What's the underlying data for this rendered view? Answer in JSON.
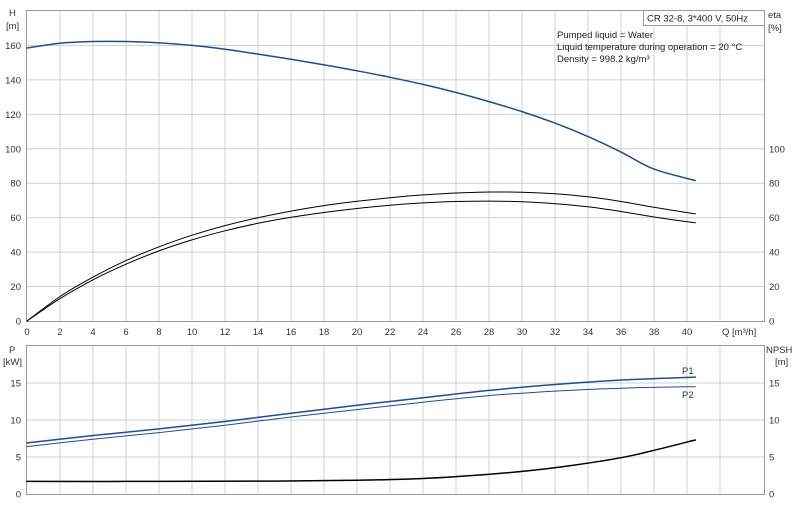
{
  "header": {
    "model": "CR 32-8, 3*400 V, 50Hz",
    "info_lines": [
      "Pumped liquid = Water",
      "Liquid temperature during operation = 20 °C",
      "Density = 998.2 kg/m³"
    ]
  },
  "colors": {
    "blue": "#1f4e8c",
    "black": "#000000",
    "grid": "#d0d0d0"
  },
  "chart_data": [
    {
      "type": "line",
      "panel": "top",
      "xlabel": "Q [m³/h]",
      "ylabel_left": [
        "H",
        "[m]"
      ],
      "ylabel_right": [
        "eta",
        "[%]"
      ],
      "xlim": [
        0,
        44
      ],
      "ylim": [
        0,
        180
      ],
      "xticks": [
        0,
        2,
        4,
        6,
        8,
        10,
        12,
        14,
        16,
        18,
        20,
        22,
        24,
        26,
        28,
        30,
        32,
        34,
        36,
        38,
        40
      ],
      "yticks_left": [
        0,
        20,
        40,
        60,
        80,
        100,
        120,
        140,
        160
      ],
      "yticks_right": [
        0,
        20,
        40,
        60,
        80,
        100
      ],
      "series": [
        {
          "axis": "left",
          "color": "#1f4e8c",
          "width": 1.5,
          "x": [
            0,
            2,
            4,
            6,
            8,
            10,
            12,
            14,
            16,
            18,
            20,
            22,
            24,
            26,
            28,
            30,
            32,
            34,
            36,
            38,
            40.5
          ],
          "y": [
            158.5,
            161.3,
            162.3,
            162.3,
            161.5,
            160,
            157.8,
            155,
            152,
            148.7,
            145.3,
            141.5,
            137.4,
            132.7,
            127.4,
            121.6,
            114.9,
            107.1,
            98.1,
            88.2,
            81.6
          ]
        },
        {
          "axis": "right",
          "color": "#000000",
          "width": 1,
          "x": [
            0,
            2,
            4,
            6,
            8,
            10,
            12,
            14,
            16,
            18,
            20,
            22,
            24,
            26,
            28,
            30,
            32,
            34,
            36,
            38,
            40.5
          ],
          "y": [
            0,
            14.2,
            25.5,
            35.1,
            43.1,
            49.8,
            55.4,
            60,
            63.8,
            67,
            69.5,
            71.6,
            73.2,
            74.3,
            74.9,
            74.8,
            73.9,
            72.1,
            69.4,
            66,
            62.2
          ]
        },
        {
          "axis": "right",
          "color": "#000000",
          "width": 1,
          "x": [
            0,
            2,
            4,
            6,
            8,
            10,
            12,
            14,
            16,
            18,
            20,
            22,
            24,
            26,
            28,
            30,
            32,
            34,
            36,
            38,
            40.5
          ],
          "y": [
            0,
            13,
            23.9,
            33,
            40.7,
            47.1,
            52.4,
            56.7,
            60.2,
            63,
            65.3,
            67.2,
            68.6,
            69.4,
            69.6,
            69.2,
            68.1,
            66.3,
            63.6,
            60.4,
            57
          ]
        }
      ]
    },
    {
      "type": "line",
      "panel": "bottom",
      "ylabel_left": [
        "P",
        "[kW]"
      ],
      "ylabel_right": [
        "NPSH",
        "[m]"
      ],
      "xlim": [
        0,
        44
      ],
      "ylim": [
        0,
        20
      ],
      "yticks_left": [
        0,
        5,
        10,
        15
      ],
      "yticks_right": [
        0,
        5,
        10,
        15
      ],
      "series": [
        {
          "name": "P1",
          "axis": "left",
          "color": "#1f4e8c",
          "width": 1.5,
          "x": [
            0,
            4,
            8,
            12,
            16,
            20,
            24,
            28,
            32,
            36,
            40.5
          ],
          "y": [
            6.9,
            7.9,
            8.8,
            9.8,
            10.9,
            12,
            13,
            14,
            14.8,
            15.4,
            15.8
          ]
        },
        {
          "name": "P2",
          "axis": "left",
          "color": "#1f4e8c",
          "width": 1,
          "x": [
            0,
            4,
            8,
            12,
            16,
            20,
            24,
            28,
            32,
            36,
            40.5
          ],
          "y": [
            6.4,
            7.4,
            8.3,
            9.3,
            10.4,
            11.4,
            12.4,
            13.3,
            13.9,
            14.3,
            14.5
          ]
        },
        {
          "axis": "right",
          "color": "#000000",
          "width": 1.5,
          "x": [
            0,
            8,
            15,
            20,
            24,
            27,
            30,
            33,
            36,
            38,
            40.5
          ],
          "y": [
            1.7,
            1.7,
            1.75,
            1.85,
            2.1,
            2.5,
            3.05,
            3.85,
            4.9,
            5.9,
            7.3
          ]
        }
      ]
    }
  ]
}
